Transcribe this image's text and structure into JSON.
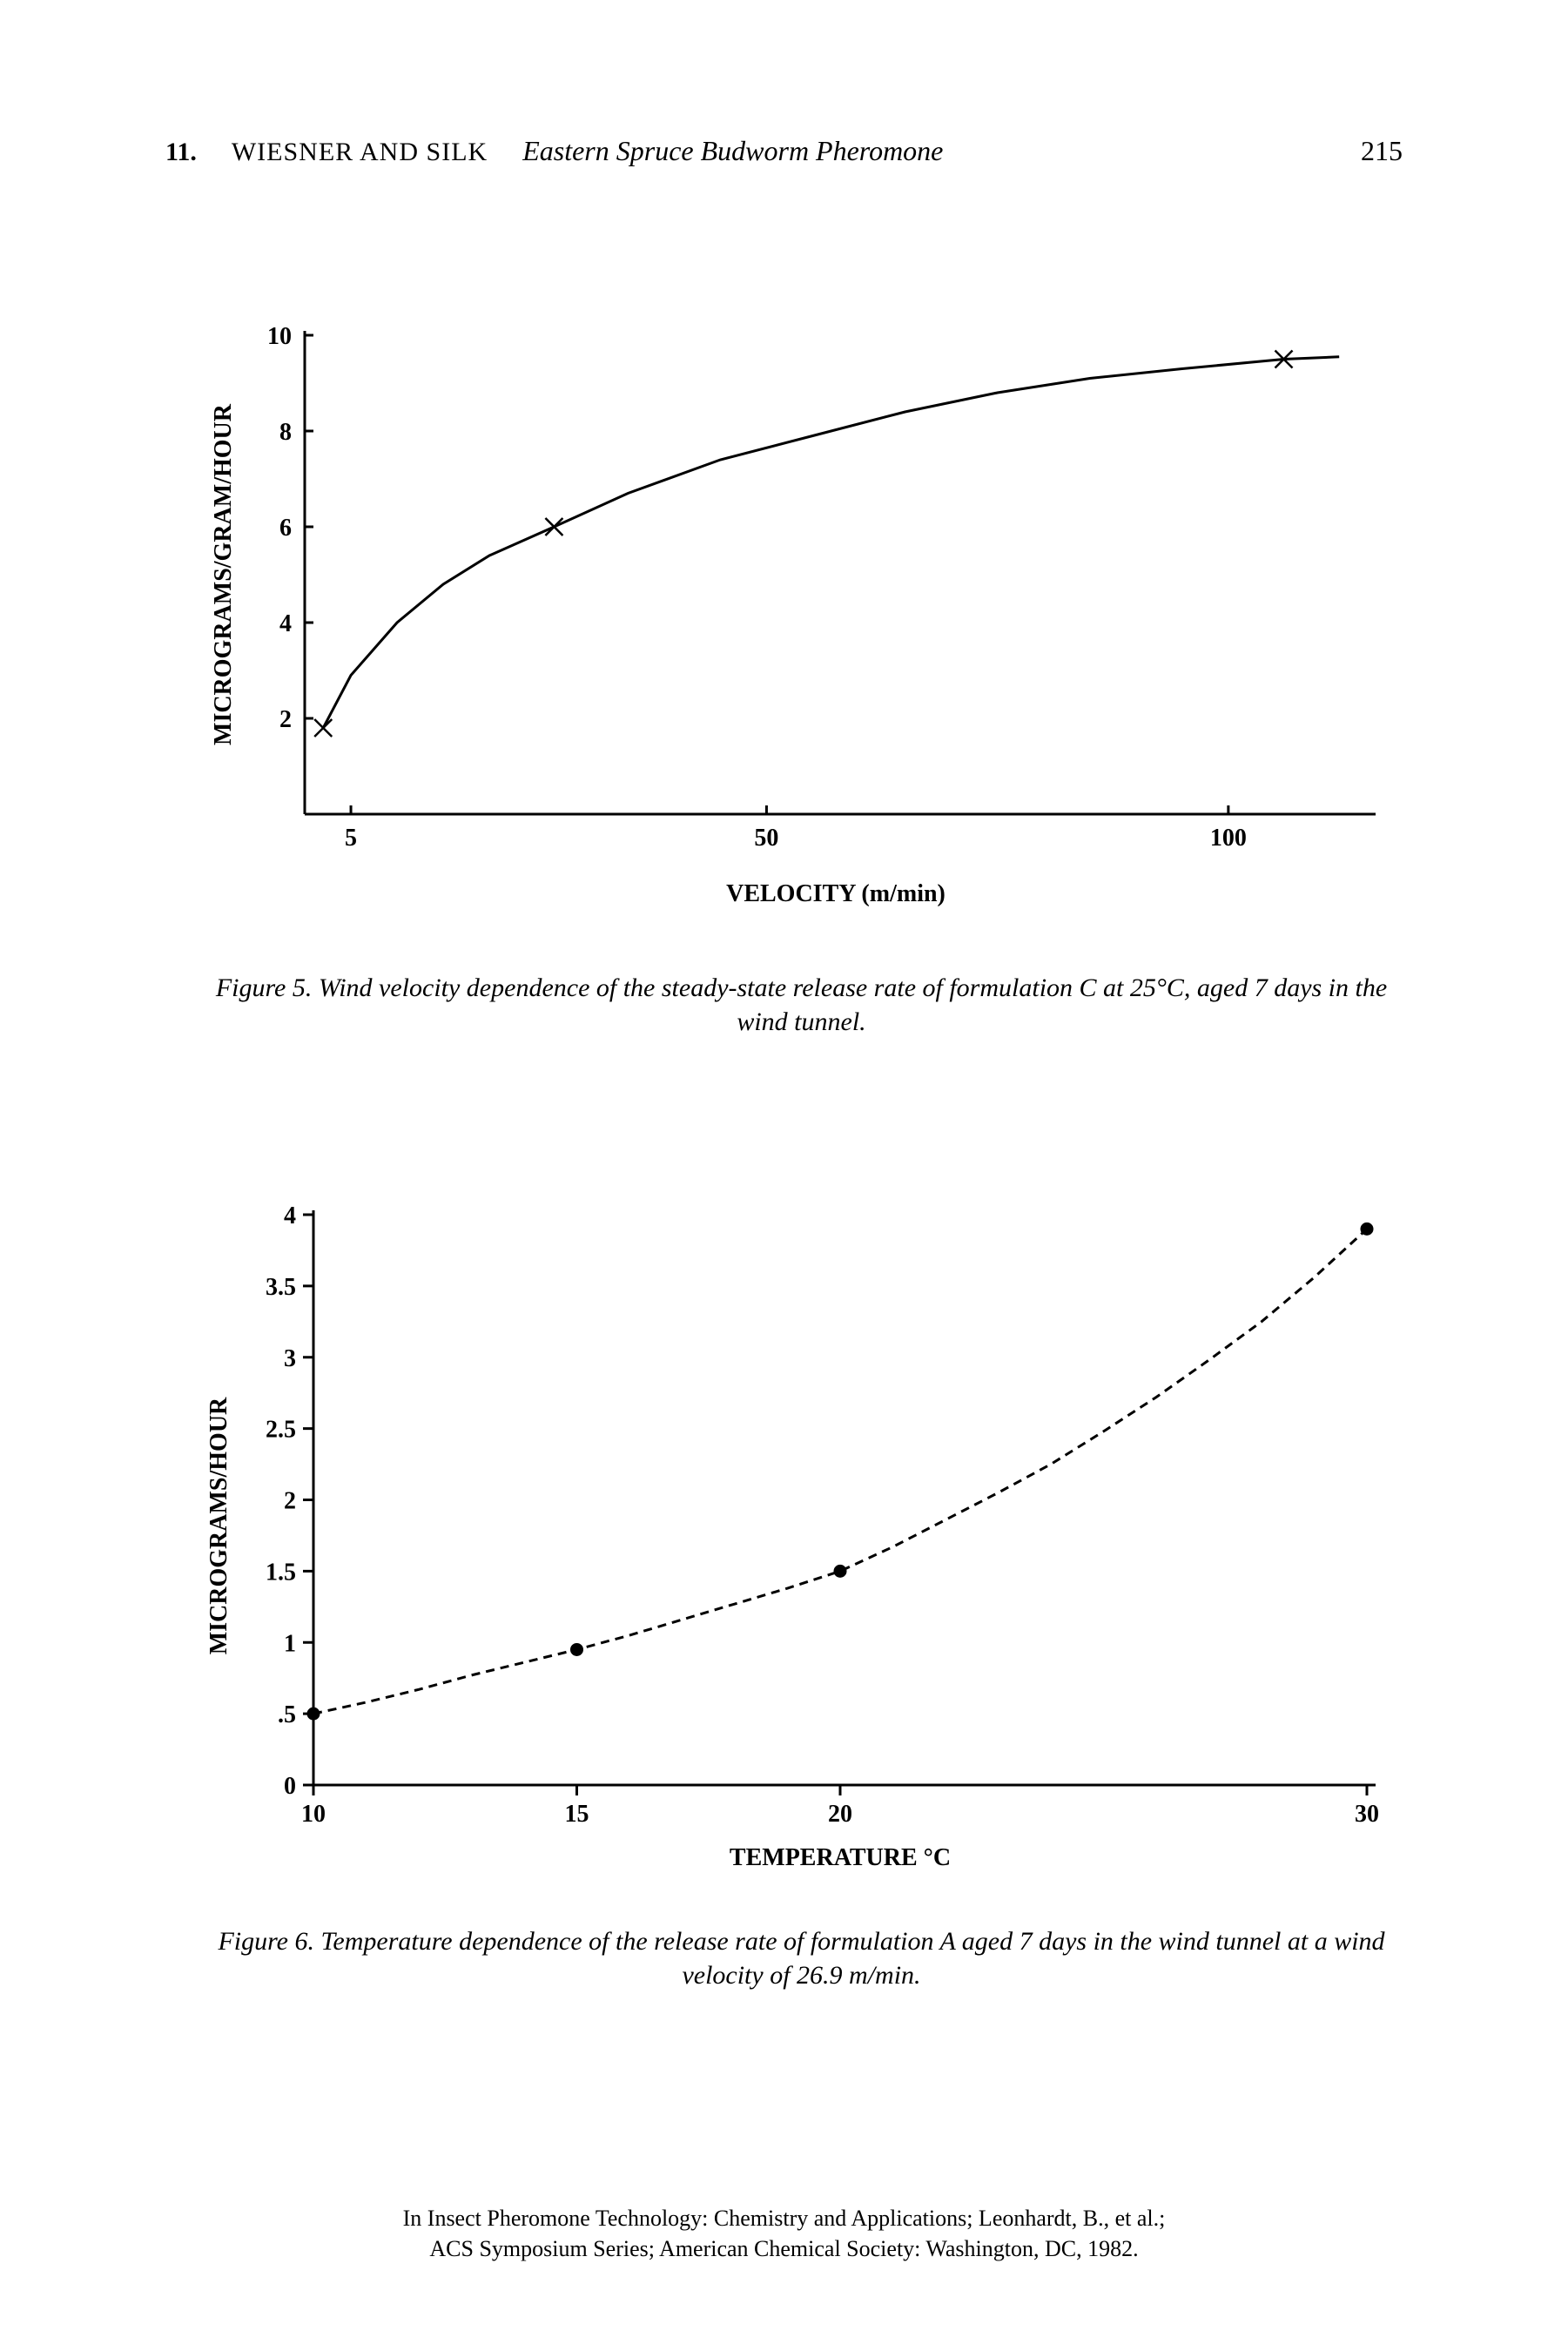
{
  "header": {
    "chapter": "11.",
    "authors": "WIESNER AND SILK",
    "running_title": "Eastern Spruce Budworm Pheromone",
    "page_number": "215"
  },
  "figure5": {
    "type": "line",
    "ylabel": "MICROGRAMS/GRAM/HOUR",
    "xlabel": "VELOCITY (m/min)",
    "ylim": [
      0,
      10
    ],
    "yticks": [
      2,
      4,
      6,
      8,
      10
    ],
    "xticks": [
      5,
      50,
      100
    ],
    "xlim": [
      0,
      115
    ],
    "data_points": [
      {
        "x": 2,
        "y": 1.8
      },
      {
        "x": 27,
        "y": 6.0
      },
      {
        "x": 106,
        "y": 9.5
      }
    ],
    "curve": [
      {
        "x": 2,
        "y": 1.8
      },
      {
        "x": 5,
        "y": 2.9
      },
      {
        "x": 10,
        "y": 4.0
      },
      {
        "x": 15,
        "y": 4.8
      },
      {
        "x": 20,
        "y": 5.4
      },
      {
        "x": 27,
        "y": 6.0
      },
      {
        "x": 35,
        "y": 6.7
      },
      {
        "x": 45,
        "y": 7.4
      },
      {
        "x": 55,
        "y": 7.9
      },
      {
        "x": 65,
        "y": 8.4
      },
      {
        "x": 75,
        "y": 8.8
      },
      {
        "x": 85,
        "y": 9.1
      },
      {
        "x": 95,
        "y": 9.3
      },
      {
        "x": 106,
        "y": 9.5
      },
      {
        "x": 112,
        "y": 9.55
      }
    ],
    "line_color": "#000000",
    "line_width": 3,
    "marker": "x",
    "marker_size": 10,
    "background_color": "#ffffff",
    "axis_width": 3,
    "tick_length": 10,
    "label_fontsize": 28,
    "title_fontsize": 28,
    "caption_label": "Figure 5.",
    "caption_text": "Wind velocity dependence of the steady-state release rate of formulation C at 25°C, aged 7 days in the wind tunnel."
  },
  "figure6": {
    "type": "line",
    "ylabel": "MICROGRAMS/HOUR",
    "xlabel": "TEMPERATURE  °C",
    "ylim": [
      0,
      4
    ],
    "yticks": [
      0,
      0.5,
      1,
      1.5,
      2,
      2.5,
      3,
      3.5,
      4
    ],
    "ytick_labels": [
      "0",
      ".5",
      "1",
      "1.5",
      "2",
      "2.5",
      "3",
      "3.5",
      "4"
    ],
    "xlim": [
      10,
      30
    ],
    "xticks": [
      10,
      15,
      20,
      30
    ],
    "data_points": [
      {
        "x": 10,
        "y": 0.5
      },
      {
        "x": 15,
        "y": 0.95
      },
      {
        "x": 20,
        "y": 1.5
      },
      {
        "x": 30,
        "y": 3.9
      }
    ],
    "curve": [
      {
        "x": 10,
        "y": 0.5
      },
      {
        "x": 11,
        "y": 0.58
      },
      {
        "x": 12,
        "y": 0.67
      },
      {
        "x": 13,
        "y": 0.77
      },
      {
        "x": 14,
        "y": 0.86
      },
      {
        "x": 15,
        "y": 0.95
      },
      {
        "x": 16,
        "y": 1.05
      },
      {
        "x": 17,
        "y": 1.16
      },
      {
        "x": 18,
        "y": 1.27
      },
      {
        "x": 19,
        "y": 1.38
      },
      {
        "x": 20,
        "y": 1.5
      },
      {
        "x": 21,
        "y": 1.67
      },
      {
        "x": 22,
        "y": 1.86
      },
      {
        "x": 23,
        "y": 2.05
      },
      {
        "x": 24,
        "y": 2.25
      },
      {
        "x": 25,
        "y": 2.48
      },
      {
        "x": 26,
        "y": 2.72
      },
      {
        "x": 27,
        "y": 2.98
      },
      {
        "x": 28,
        "y": 3.25
      },
      {
        "x": 29,
        "y": 3.56
      },
      {
        "x": 30,
        "y": 3.9
      }
    ],
    "line_color": "#000000",
    "line_style": "dashed",
    "dash_pattern": "10,7",
    "line_width": 3,
    "marker": "circle",
    "marker_size": 7,
    "marker_fill": "#000000",
    "background_color": "#ffffff",
    "axis_width": 3,
    "tick_length": 12,
    "label_fontsize": 28,
    "title_fontsize": 28,
    "caption_label": "Figure 6.",
    "caption_text": "Temperature dependence of the release rate of formulation A aged 7 days in the wind tunnel at a wind velocity of 26.9 m/min."
  },
  "footer": {
    "line1": "In Insect Pheromone Technology: Chemistry and Applications; Leonhardt, B., et al.;",
    "line2": "ACS Symposium Series; American Chemical Society: Washington, DC, 1982."
  }
}
